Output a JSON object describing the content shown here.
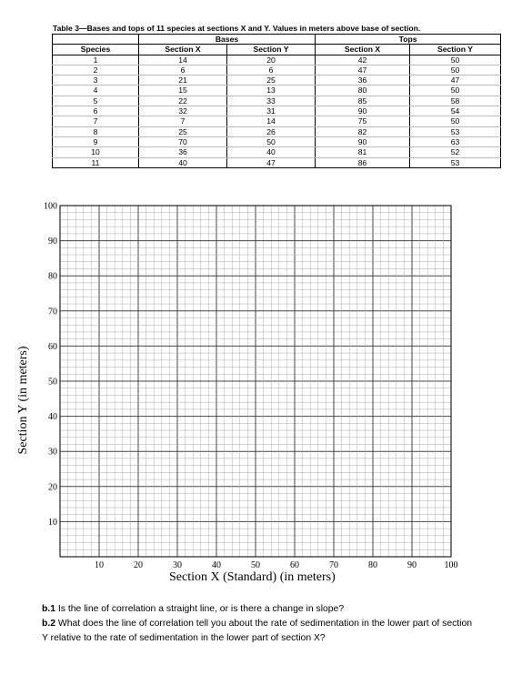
{
  "caption": "Table 3—Bases and tops of 11 species at sections X and Y. Values in meters above base of section.",
  "table": {
    "group_headers": [
      "Bases",
      "Tops"
    ],
    "columns": [
      "Species",
      "Section X",
      "Section Y",
      "Section X",
      "Section Y"
    ],
    "rows": [
      [
        "1",
        "14",
        "20",
        "42",
        "50"
      ],
      [
        "2",
        "6",
        "6",
        "47",
        "50"
      ],
      [
        "3",
        "21",
        "25",
        "36",
        "47"
      ],
      [
        "4",
        "15",
        "13",
        "80",
        "50"
      ],
      [
        "5",
        "22",
        "33",
        "85",
        "58"
      ],
      [
        "6",
        "32",
        "31",
        "90",
        "54"
      ],
      [
        "7",
        "7",
        "14",
        "75",
        "50"
      ],
      [
        "8",
        "25",
        "26",
        "82",
        "53"
      ],
      [
        "9",
        "70",
        "50",
        "90",
        "63"
      ],
      [
        "10",
        "36",
        "40",
        "81",
        "52"
      ],
      [
        "11",
        "40",
        "47",
        "86",
        "53"
      ]
    ]
  },
  "chart_data": {
    "type": "scatter",
    "title": "",
    "xlabel": "Section X (Standard) (in meters)",
    "ylabel": "Section Y (in meters)",
    "xlim": [
      0,
      100
    ],
    "ylim": [
      0,
      100
    ],
    "x_ticks": [
      "10",
      "20",
      "30",
      "40",
      "50",
      "60",
      "70",
      "80",
      "90",
      "100"
    ],
    "y_ticks": [
      "10",
      "20",
      "30",
      "40",
      "50",
      "60",
      "70",
      "80",
      "90",
      "100"
    ],
    "grid": true,
    "points": []
  },
  "questions": [
    {
      "label": "b.1",
      "text": " Is the line of correlation a straight line, or is there a change in slope?"
    },
    {
      "label": "b.2",
      "text": " What does the line of correlation tell you about the rate of sedimentation in the lower part of section Y relative to the rate of sedimentation in the lower part of section X?"
    }
  ]
}
